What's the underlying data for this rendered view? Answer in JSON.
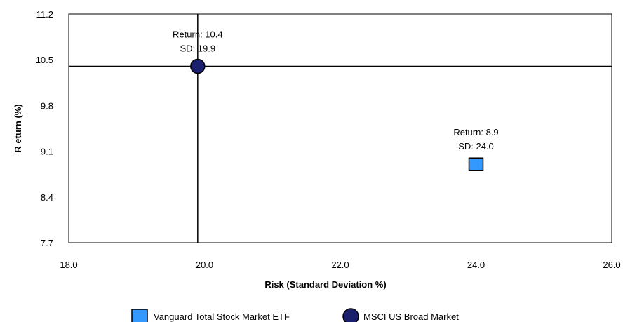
{
  "chart_data": {
    "type": "scatter",
    "xlabel": "Risk (Standard Deviation %)",
    "ylabel": "R eturn (%)",
    "xlim": [
      18.0,
      26.0
    ],
    "ylim": [
      7.7,
      11.2
    ],
    "xticks": [
      "18.0",
      "20.0",
      "22.0",
      "24.0",
      "26.0"
    ],
    "yticks": [
      "7.7",
      "8.4",
      "9.1",
      "9.8",
      "10.5",
      "11.2"
    ],
    "grid": false,
    "legend_position": "bottom",
    "crosshair": {
      "x": 19.9,
      "y": 10.4
    },
    "series": [
      {
        "name": "Vanguard Total Stock Market ETF",
        "marker": "square",
        "color": "#3399ff",
        "x": 24.0,
        "y": 8.9,
        "label_line1": "Return: 8.9",
        "label_line2": "SD: 24.0"
      },
      {
        "name": "MSCI US Broad Market",
        "marker": "circle",
        "color": "#1a1f6e",
        "x": 19.9,
        "y": 10.4,
        "label_line1": "Return: 10.4",
        "label_line2": "SD: 19.9"
      }
    ]
  }
}
